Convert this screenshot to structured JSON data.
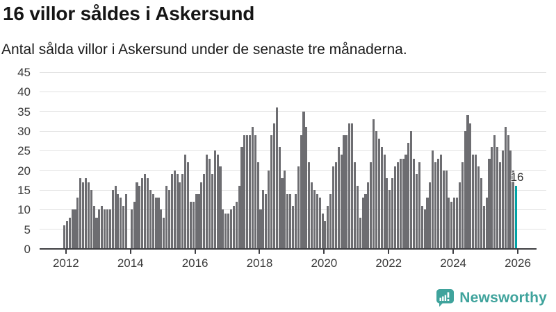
{
  "header": {
    "title": "16 villor såldes i Askersund",
    "subtitle": "Antal sålda villor i Askersund under de senaste tre månaderna."
  },
  "chart_data": {
    "type": "bar",
    "title": "16 villor såldes i Askersund",
    "subtitle": "Antal sålda villor i Askersund under de senaste tre månaderna.",
    "xlabel": "",
    "ylabel": "",
    "ylim": [
      0,
      45
    ],
    "y_ticks": [
      0,
      5,
      10,
      15,
      20,
      25,
      30,
      35,
      40,
      45
    ],
    "x_ticks": [
      {
        "label": "2012",
        "month_index": 1
      },
      {
        "label": "2014",
        "month_index": 25
      },
      {
        "label": "2016",
        "month_index": 49
      },
      {
        "label": "2018",
        "month_index": 73
      },
      {
        "label": "2020",
        "month_index": 97
      },
      {
        "label": "2022",
        "month_index": 121
      },
      {
        "label": "2024",
        "month_index": 145
      },
      {
        "label": "2026",
        "month_index": 169
      }
    ],
    "grid": true,
    "legend": "none",
    "bar_color": "#6d6d71",
    "highlight_color": "#00a3a6",
    "last_value_label": "16",
    "last_value": 16,
    "values": [
      6,
      7,
      8,
      10,
      10,
      13,
      18,
      17,
      18,
      17,
      15,
      11,
      8,
      10,
      11,
      10,
      10,
      10,
      15,
      16,
      14,
      13,
      11,
      14,
      0,
      10,
      12,
      17,
      16,
      18,
      19,
      18,
      15,
      14,
      13,
      13,
      10,
      8,
      16,
      15,
      19,
      20,
      19,
      17,
      19,
      24,
      22,
      12,
      12,
      14,
      14,
      17,
      19,
      24,
      23,
      19,
      25,
      24,
      21,
      10,
      9,
      9,
      10,
      11,
      12,
      16,
      26,
      29,
      29,
      29,
      31,
      29,
      22,
      10,
      15,
      14,
      20,
      29,
      32,
      36,
      26,
      18,
      20,
      14,
      14,
      11,
      14,
      21,
      29,
      35,
      31,
      22,
      17,
      15,
      14,
      13,
      9,
      7,
      11,
      14,
      21,
      22,
      26,
      24,
      29,
      29,
      32,
      32,
      22,
      16,
      8,
      13,
      14,
      17,
      22,
      33,
      30,
      28,
      26,
      24,
      18,
      15,
      18,
      21,
      22,
      23,
      23,
      24,
      27,
      30,
      23,
      19,
      22,
      11,
      10,
      13,
      17,
      25,
      22,
      23,
      24,
      20,
      20,
      13,
      12,
      13,
      13,
      17,
      22,
      30,
      34,
      32,
      24,
      24,
      21,
      18,
      11,
      13,
      23,
      26,
      29,
      26,
      22,
      25,
      31,
      29,
      25,
      20,
      16
    ]
  },
  "footer": {
    "brand": "Newsworthy",
    "brand_color": "#3fa39c"
  }
}
